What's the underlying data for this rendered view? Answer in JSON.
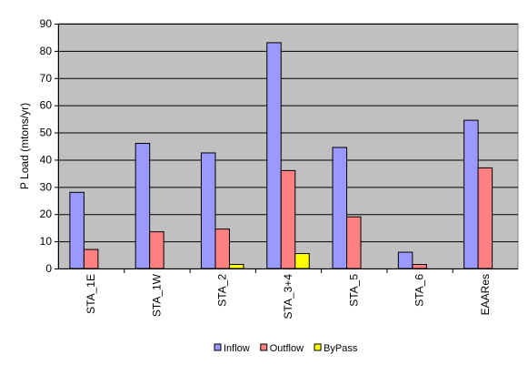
{
  "chart_data": {
    "type": "bar",
    "title": "",
    "xlabel": "",
    "ylabel": "P Load  (mtons/yr)",
    "ylim": [
      0,
      90
    ],
    "yticks": [
      0,
      10,
      20,
      30,
      40,
      50,
      60,
      70,
      80,
      90
    ],
    "grid": true,
    "legend_position": "bottom",
    "categories": [
      "STA_1E",
      "STA_1W",
      "STA_2",
      "STA_3+4",
      "STA_5",
      "STA_6",
      "EAARes"
    ],
    "series": [
      {
        "name": "Inflow",
        "color": "#9999FF",
        "values": [
          28,
          46,
          42.5,
          83,
          44.5,
          6,
          54.5
        ]
      },
      {
        "name": "Outflow",
        "color": "#FF8080",
        "values": [
          7,
          13.5,
          14.5,
          36,
          19,
          1.5,
          37
        ]
      },
      {
        "name": "ByPass",
        "color": "#FFFF00",
        "values": [
          0,
          0,
          1.5,
          5.5,
          0,
          0,
          0
        ]
      }
    ],
    "colors": {
      "plot_background": "#C0C0C0",
      "grid": "#000000"
    }
  }
}
